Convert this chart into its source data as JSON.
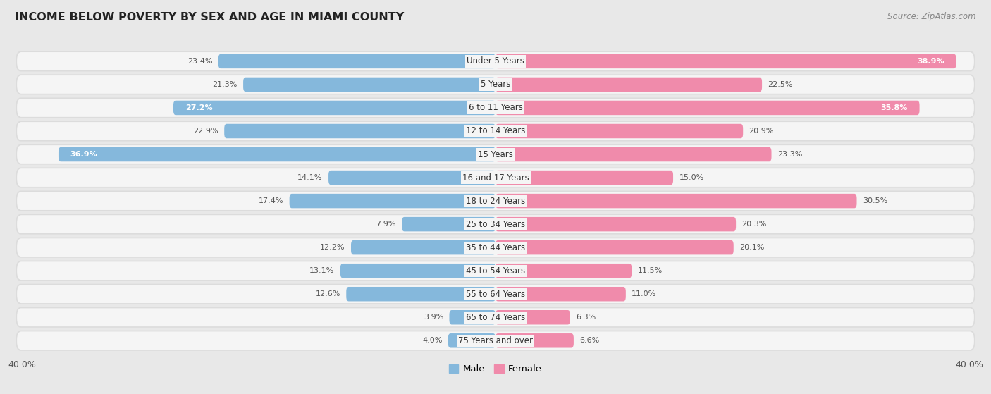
{
  "title": "INCOME BELOW POVERTY BY SEX AND AGE IN MIAMI COUNTY",
  "source": "Source: ZipAtlas.com",
  "categories": [
    "Under 5 Years",
    "5 Years",
    "6 to 11 Years",
    "12 to 14 Years",
    "15 Years",
    "16 and 17 Years",
    "18 to 24 Years",
    "25 to 34 Years",
    "35 to 44 Years",
    "45 to 54 Years",
    "55 to 64 Years",
    "65 to 74 Years",
    "75 Years and over"
  ],
  "male": [
    23.4,
    21.3,
    27.2,
    22.9,
    36.9,
    14.1,
    17.4,
    7.9,
    12.2,
    13.1,
    12.6,
    3.9,
    4.0
  ],
  "female": [
    38.9,
    22.5,
    35.8,
    20.9,
    23.3,
    15.0,
    30.5,
    20.3,
    20.1,
    11.5,
    11.0,
    6.3,
    6.6
  ],
  "male_color": "#85b8dc",
  "female_color": "#f08bab",
  "male_label": "Male",
  "female_label": "Female",
  "axis_max": 40.0,
  "fig_bg": "#e8e8e8",
  "row_bg_outer": "#dcdcdc",
  "row_bg_inner": "#f5f5f5",
  "title_fontsize": 11.5,
  "source_fontsize": 8.5,
  "label_fontsize": 8,
  "category_fontsize": 8.5,
  "axis_label_fontsize": 9
}
